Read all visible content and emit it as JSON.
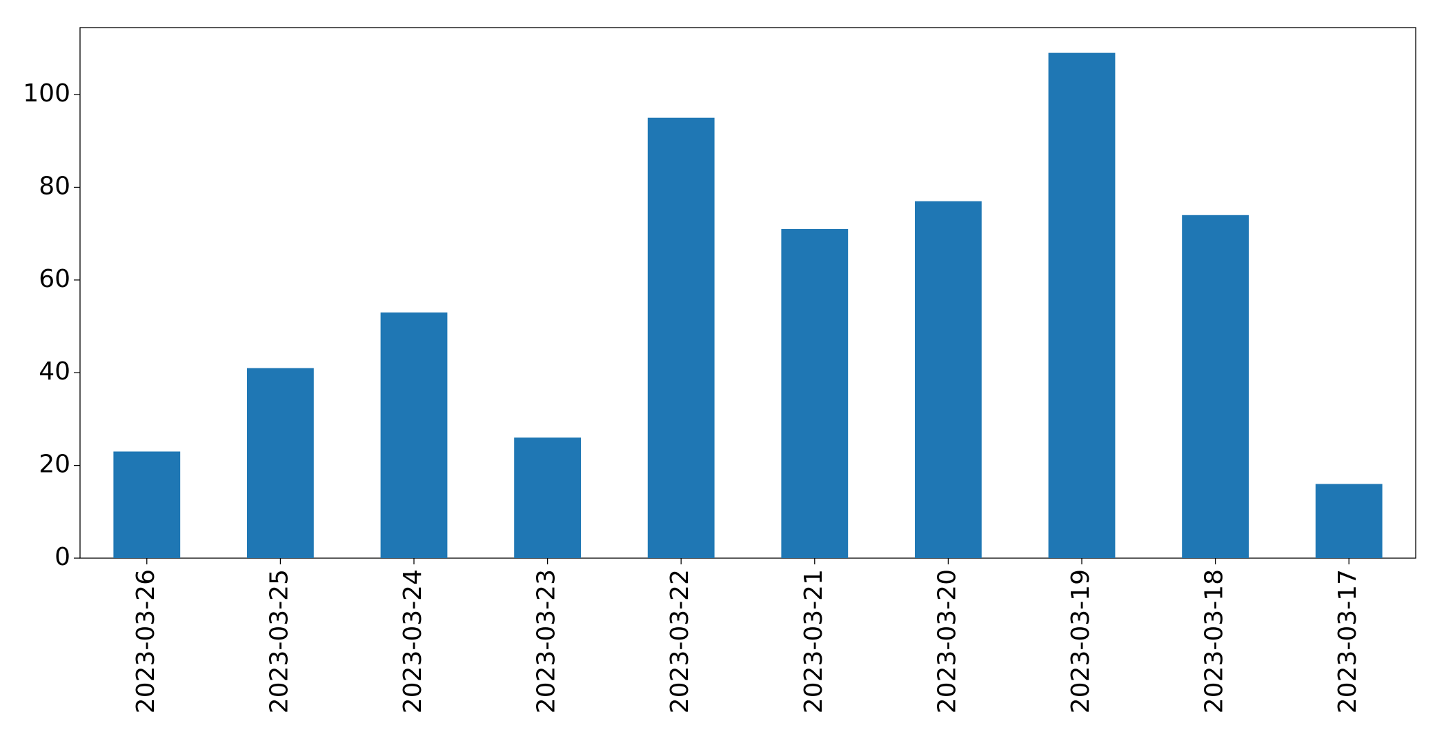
{
  "chart_data": {
    "type": "bar",
    "categories": [
      "2023-03-26",
      "2023-03-25",
      "2023-03-24",
      "2023-03-23",
      "2023-03-22",
      "2023-03-21",
      "2023-03-20",
      "2023-03-19",
      "2023-03-18",
      "2023-03-17"
    ],
    "values": [
      23,
      41,
      53,
      26,
      95,
      71,
      77,
      109,
      74,
      16
    ],
    "color": "#1f77b4",
    "ylim": [
      0,
      114.45
    ],
    "yticks": [
      0,
      20,
      40,
      60,
      80,
      100
    ],
    "grid": false
  }
}
